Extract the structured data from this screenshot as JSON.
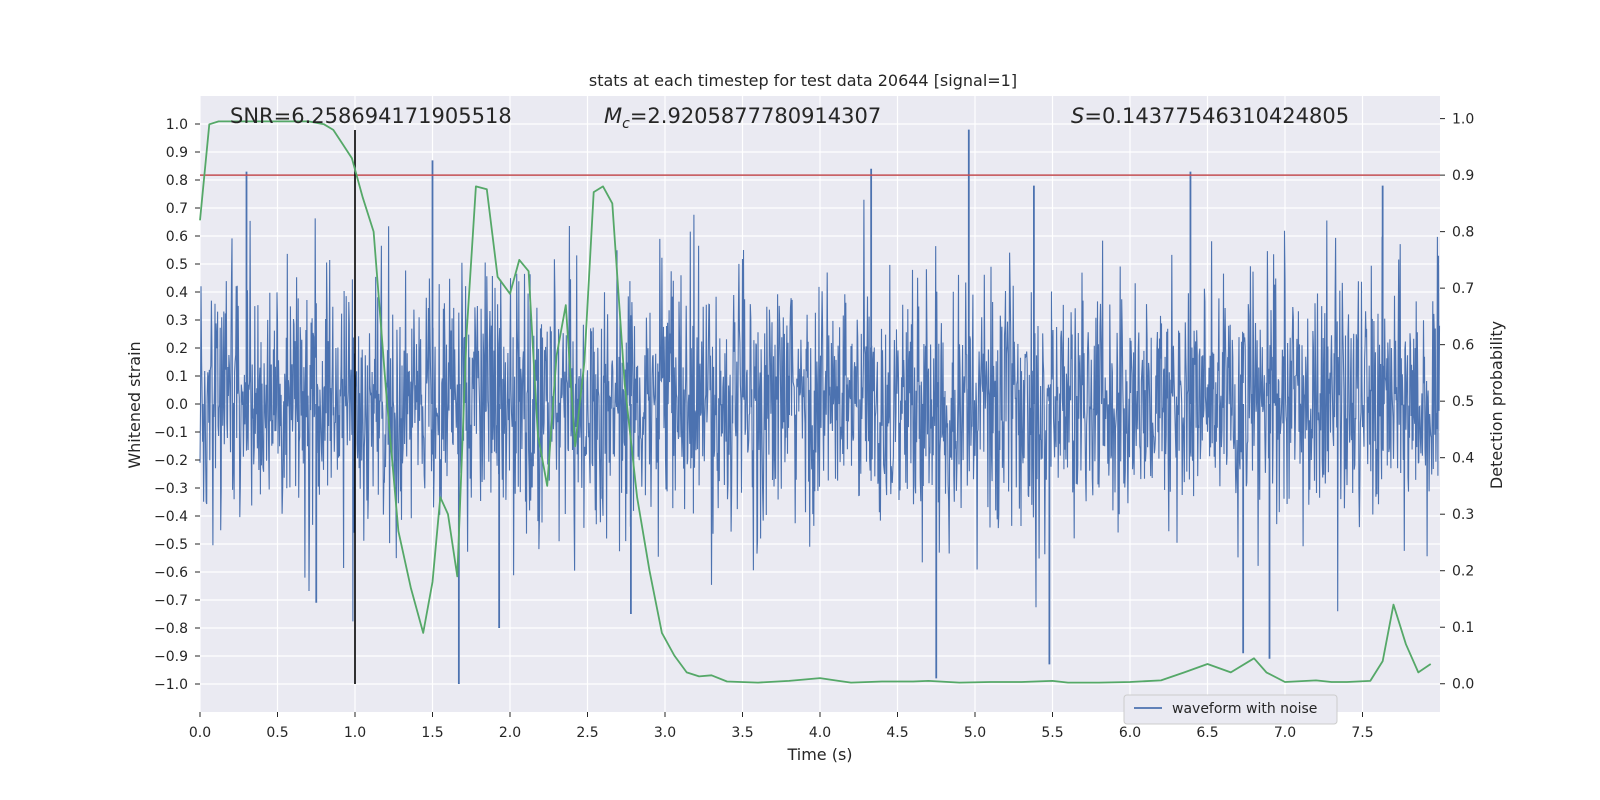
{
  "chart_data": {
    "type": "line",
    "title": "stats at each timestep for test data 20644 [signal=1]",
    "xlabel": "Time (s)",
    "ylabel": "Whitened strain",
    "y2label": "Detection probability",
    "xlim": [
      0.0,
      8.0
    ],
    "ylim": [
      -1.1,
      1.1
    ],
    "y2lim": [
      -0.05,
      1.04
    ],
    "xticks": [
      "0.0",
      "0.5",
      "1.0",
      "1.5",
      "2.0",
      "2.5",
      "3.0",
      "3.5",
      "4.0",
      "4.5",
      "5.0",
      "5.5",
      "6.0",
      "6.5",
      "7.0",
      "7.5"
    ],
    "yticks": [
      "1.0",
      "0.9",
      "0.8",
      "0.7",
      "0.6",
      "0.5",
      "0.4",
      "0.3",
      "0.2",
      "0.1",
      "0.0",
      "−0.1",
      "−0.2",
      "−0.3",
      "−0.4",
      "−0.5",
      "−0.6",
      "−0.7",
      "−0.8",
      "−0.9",
      "−1.0"
    ],
    "y2ticks": [
      "1.0",
      "0.9",
      "0.8",
      "0.7",
      "0.6",
      "0.5",
      "0.4",
      "0.3",
      "0.2",
      "0.1",
      "0.0"
    ],
    "annotations": {
      "snr": "SNR=6.258694171905518",
      "mc_symbol": "M",
      "mc_sub": "c",
      "mc_value": "=2.9205877780914307",
      "s_symbol": "S",
      "s_value": "=0.14377546310424805"
    },
    "threshold": {
      "value": 0.9,
      "axis": "y2",
      "color": "#c44e52"
    },
    "marker_time": 1.0,
    "legend": {
      "label": "waveform with noise",
      "position": "lower-right"
    },
    "series": [
      {
        "name": "waveform with noise",
        "axis": "y",
        "color": "#4c72b0",
        "style": "dense-noise",
        "duration_s": 8.0,
        "envelope_typical": 0.4,
        "notable_peaks": [
          {
            "t": 0.3,
            "v": 0.83
          },
          {
            "t": 1.5,
            "v": 0.87
          },
          {
            "t": 4.33,
            "v": 0.84
          },
          {
            "t": 4.96,
            "v": 0.98
          },
          {
            "t": 5.38,
            "v": 0.78
          },
          {
            "t": 6.39,
            "v": 0.83
          },
          {
            "t": 7.63,
            "v": 0.78
          },
          {
            "t": 1.67,
            "v": -1.0
          },
          {
            "t": 1.93,
            "v": -0.8
          },
          {
            "t": 4.75,
            "v": -0.98
          },
          {
            "t": 5.48,
            "v": -0.93
          },
          {
            "t": 6.73,
            "v": -0.89
          },
          {
            "t": 6.9,
            "v": -0.91
          },
          {
            "t": 2.78,
            "v": -0.75
          },
          {
            "t": 0.75,
            "v": -0.71
          }
        ]
      },
      {
        "name": "detection probability",
        "axis": "y2",
        "color": "#55a868",
        "x": [
          0.0,
          0.06,
          0.12,
          0.2,
          0.3,
          0.4,
          0.5,
          0.6,
          0.7,
          0.8,
          0.86,
          0.92,
          0.98,
          1.05,
          1.12,
          1.2,
          1.28,
          1.36,
          1.44,
          1.5,
          1.55,
          1.6,
          1.66,
          1.72,
          1.78,
          1.85,
          1.92,
          2.0,
          2.06,
          2.12,
          2.18,
          2.24,
          2.3,
          2.36,
          2.42,
          2.48,
          2.54,
          2.6,
          2.66,
          2.74,
          2.82,
          2.9,
          2.98,
          3.06,
          3.14,
          3.22,
          3.3,
          3.4,
          3.6,
          3.8,
          4.0,
          4.12,
          4.2,
          4.4,
          4.6,
          4.7,
          4.9,
          5.1,
          5.3,
          5.5,
          5.6,
          5.8,
          6.0,
          6.2,
          6.35,
          6.5,
          6.65,
          6.8,
          6.88,
          7.0,
          7.2,
          7.3,
          7.4,
          7.55,
          7.63,
          7.7,
          7.78,
          7.86,
          7.94
        ],
        "values": [
          0.82,
          0.99,
          0.995,
          0.995,
          0.995,
          0.995,
          0.995,
          0.995,
          0.995,
          0.99,
          0.98,
          0.955,
          0.93,
          0.86,
          0.8,
          0.52,
          0.27,
          0.17,
          0.09,
          0.18,
          0.33,
          0.3,
          0.19,
          0.62,
          0.88,
          0.875,
          0.72,
          0.69,
          0.75,
          0.73,
          0.44,
          0.35,
          0.58,
          0.67,
          0.42,
          0.57,
          0.87,
          0.88,
          0.85,
          0.53,
          0.33,
          0.2,
          0.09,
          0.05,
          0.02,
          0.013,
          0.015,
          0.004,
          0.002,
          0.005,
          0.01,
          0.005,
          0.002,
          0.004,
          0.004,
          0.005,
          0.002,
          0.003,
          0.003,
          0.005,
          0.002,
          0.002,
          0.003,
          0.006,
          0.02,
          0.035,
          0.02,
          0.045,
          0.02,
          0.003,
          0.006,
          0.003,
          0.003,
          0.005,
          0.04,
          0.14,
          0.07,
          0.02,
          0.035
        ]
      }
    ]
  }
}
